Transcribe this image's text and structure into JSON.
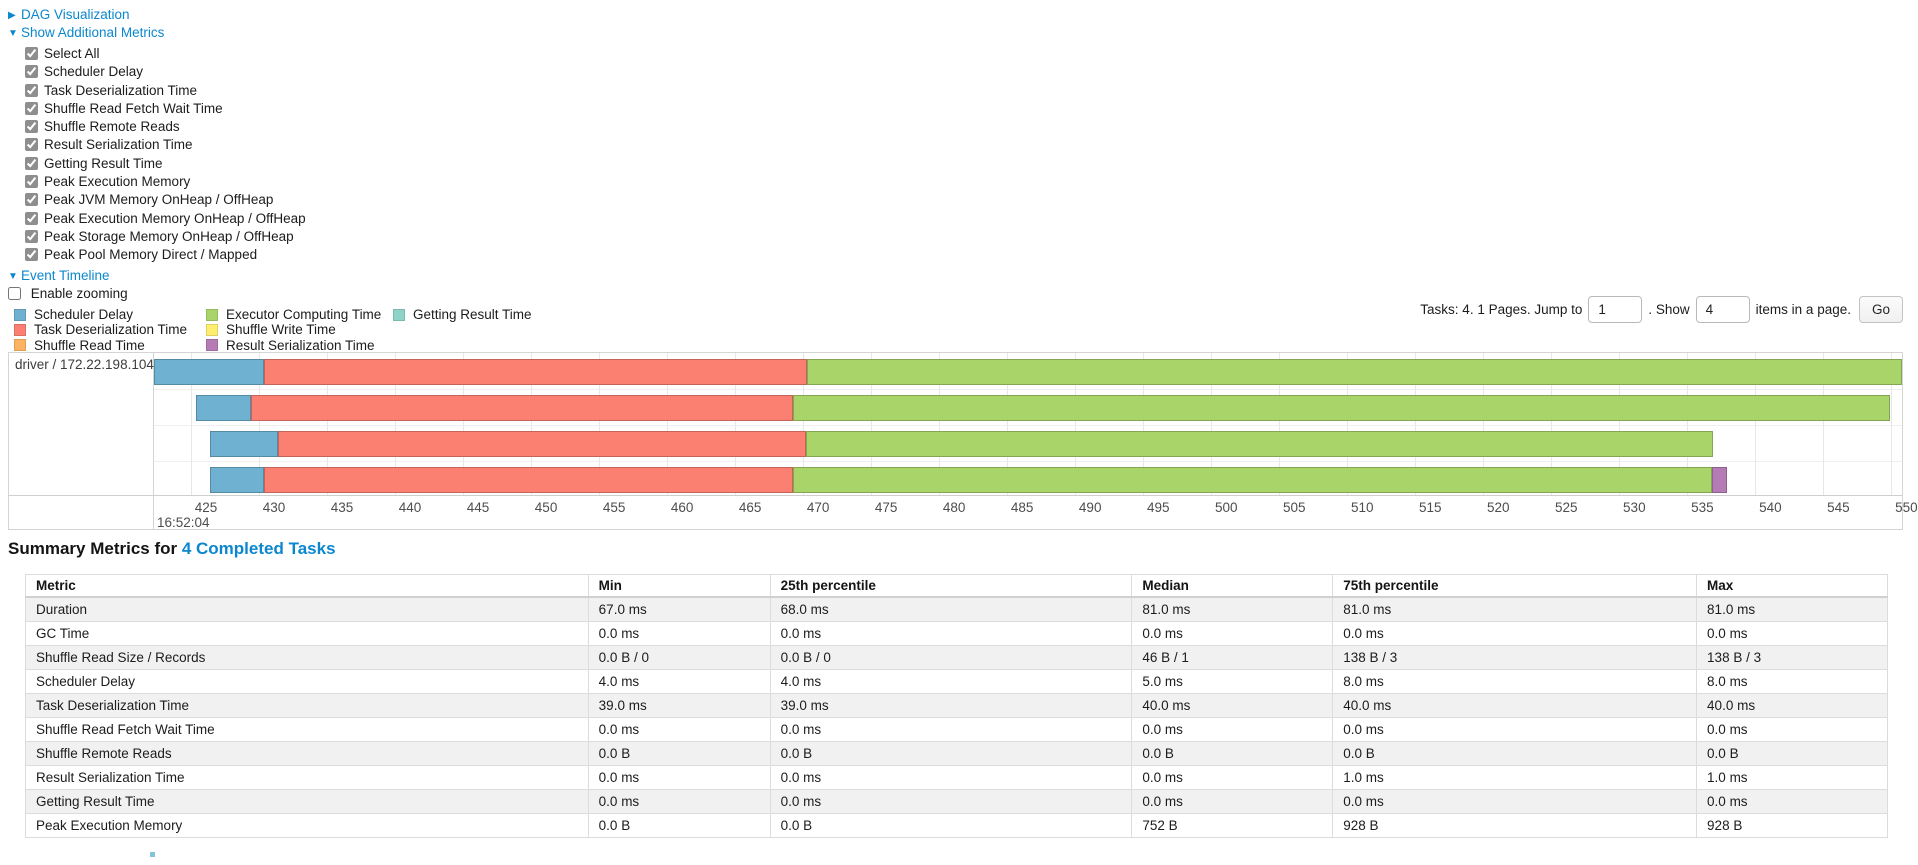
{
  "colors": {
    "link": "#0b87cf",
    "scheduler_delay": "#6FB1D1",
    "task_deserialization": "#FC8072",
    "shuffle_read": "#FDB462",
    "executor_computing": "#A9D46A",
    "shuffle_write": "#FFED6F",
    "result_serialization": "#B57BB5",
    "getting_result": "#8DD3C7"
  },
  "toggles": {
    "dag_label": "DAG Visualization",
    "metrics_label": "Show Additional Metrics",
    "timeline_label": "Event Timeline",
    "enable_zooming_label": "Enable zooming",
    "enable_zooming_checked": false
  },
  "metric_checkboxes": [
    {
      "label": "Select All",
      "checked": true
    },
    {
      "label": "Scheduler Delay",
      "checked": true
    },
    {
      "label": "Task Deserialization Time",
      "checked": true
    },
    {
      "label": "Shuffle Read Fetch Wait Time",
      "checked": true
    },
    {
      "label": "Shuffle Remote Reads",
      "checked": true
    },
    {
      "label": "Result Serialization Time",
      "checked": true
    },
    {
      "label": "Getting Result Time",
      "checked": true
    },
    {
      "label": "Peak Execution Memory",
      "checked": true
    },
    {
      "label": "Peak JVM Memory OnHeap / OffHeap",
      "checked": true
    },
    {
      "label": "Peak Execution Memory OnHeap / OffHeap",
      "checked": true
    },
    {
      "label": "Peak Storage Memory OnHeap / OffHeap",
      "checked": true
    },
    {
      "label": "Peak Pool Memory Direct / Mapped",
      "checked": true
    }
  ],
  "legend_columns": [
    [
      {
        "label": "Scheduler Delay",
        "type": "scheduler_delay"
      },
      {
        "label": "Task Deserialization Time",
        "type": "task_deserialization"
      },
      {
        "label": "Shuffle Read Time",
        "type": "shuffle_read"
      }
    ],
    [
      {
        "label": "Executor Computing Time",
        "type": "executor_computing"
      },
      {
        "label": "Shuffle Write Time",
        "type": "shuffle_write"
      },
      {
        "label": "Result Serialization Time",
        "type": "result_serialization"
      }
    ],
    [
      {
        "label": "Getting Result Time",
        "type": "getting_result"
      }
    ]
  ],
  "pagination": {
    "prefix": "Tasks: 4. 1 Pages. Jump to",
    "jump_value": "1",
    "mid": ". Show",
    "show_value": "4",
    "suffix": "items in a page.",
    "go_label": "Go"
  },
  "chart_data": {
    "type": "timeline-bar",
    "title": "Event Timeline",
    "row_label": "driver / 172.22.198.104",
    "axis": {
      "window_start": 422.3,
      "window_end": 550.8,
      "ticks": [
        425,
        430,
        435,
        440,
        445,
        450,
        455,
        460,
        465,
        470,
        475,
        480,
        485,
        490,
        495,
        500,
        505,
        510,
        515,
        520,
        525,
        530,
        535,
        540,
        545,
        550
      ],
      "major_time_label": "16:52:04"
    },
    "rows": [
      {
        "segments": [
          {
            "type": "scheduler_delay",
            "start": 422.3,
            "end": 430.4
          },
          {
            "type": "task_deserialization",
            "start": 430.4,
            "end": 470.3
          },
          {
            "type": "executor_computing",
            "start": 470.3,
            "end": 550.8
          }
        ]
      },
      {
        "segments": [
          {
            "type": "scheduler_delay",
            "start": 425.4,
            "end": 429.4
          },
          {
            "type": "task_deserialization",
            "start": 429.4,
            "end": 469.3
          },
          {
            "type": "executor_computing",
            "start": 469.3,
            "end": 549.9
          }
        ]
      },
      {
        "segments": [
          {
            "type": "scheduler_delay",
            "start": 426.4,
            "end": 431.4
          },
          {
            "type": "task_deserialization",
            "start": 431.4,
            "end": 470.2
          },
          {
            "type": "executor_computing",
            "start": 470.2,
            "end": 536.9
          }
        ]
      },
      {
        "segments": [
          {
            "type": "scheduler_delay",
            "start": 426.4,
            "end": 430.4
          },
          {
            "type": "task_deserialization",
            "start": 430.4,
            "end": 469.3
          },
          {
            "type": "executor_computing",
            "start": 469.3,
            "end": 536.8
          },
          {
            "type": "result_serialization",
            "start": 536.8,
            "end": 537.9
          }
        ]
      }
    ]
  },
  "summary": {
    "heading_prefix": "Summary Metrics for ",
    "heading_link": "4 Completed Tasks",
    "columns": [
      "Metric",
      "Min",
      "25th percentile",
      "Median",
      "75th percentile",
      "Max"
    ],
    "rows": [
      [
        "Duration",
        "67.0 ms",
        "68.0 ms",
        "81.0 ms",
        "81.0 ms",
        "81.0 ms"
      ],
      [
        "GC Time",
        "0.0 ms",
        "0.0 ms",
        "0.0 ms",
        "0.0 ms",
        "0.0 ms"
      ],
      [
        "Shuffle Read Size / Records",
        "0.0 B / 0",
        "0.0 B / 0",
        "46 B / 1",
        "138 B / 3",
        "138 B / 3"
      ],
      [
        "Scheduler Delay",
        "4.0 ms",
        "4.0 ms",
        "5.0 ms",
        "8.0 ms",
        "8.0 ms"
      ],
      [
        "Task Deserialization Time",
        "39.0 ms",
        "39.0 ms",
        "40.0 ms",
        "40.0 ms",
        "40.0 ms"
      ],
      [
        "Shuffle Read Fetch Wait Time",
        "0.0 ms",
        "0.0 ms",
        "0.0 ms",
        "0.0 ms",
        "0.0 ms"
      ],
      [
        "Shuffle Remote Reads",
        "0.0 B",
        "0.0 B",
        "0.0 B",
        "0.0 B",
        "0.0 B"
      ],
      [
        "Result Serialization Time",
        "0.0 ms",
        "0.0 ms",
        "0.0 ms",
        "1.0 ms",
        "1.0 ms"
      ],
      [
        "Getting Result Time",
        "0.0 ms",
        "0.0 ms",
        "0.0 ms",
        "0.0 ms",
        "0.0 ms"
      ],
      [
        "Peak Execution Memory",
        "0.0 B",
        "0.0 B",
        "752 B",
        "928 B",
        "928 B"
      ]
    ]
  }
}
